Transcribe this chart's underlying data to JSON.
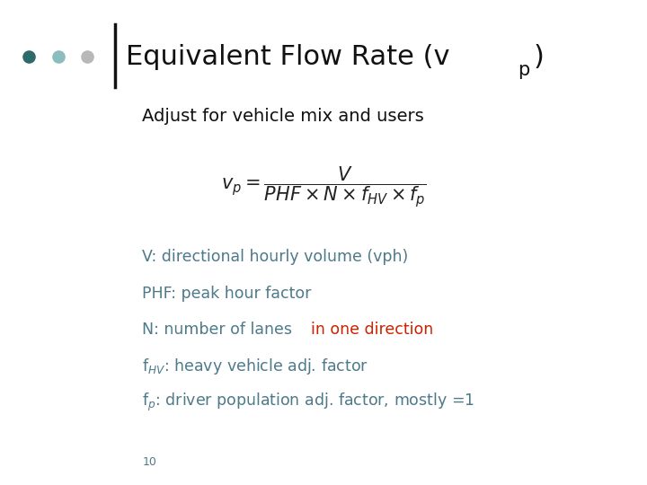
{
  "title_main": "Equivalent Flow Rate (v",
  "title_sub": "p",
  "title_end": ")",
  "subtitle": "Adjust for vehicle mix and users",
  "slide_number": "10",
  "dot_colors": [
    "#2d6b6b",
    "#8bbcbe",
    "#b8b8b8"
  ],
  "title_color": "#111111",
  "subtitle_color": "#111111",
  "bg_color": "#ffffff",
  "line_color": "#111111",
  "text_color": "#4d7a8a",
  "red_color": "#cc2200",
  "formula_color": "#222222"
}
